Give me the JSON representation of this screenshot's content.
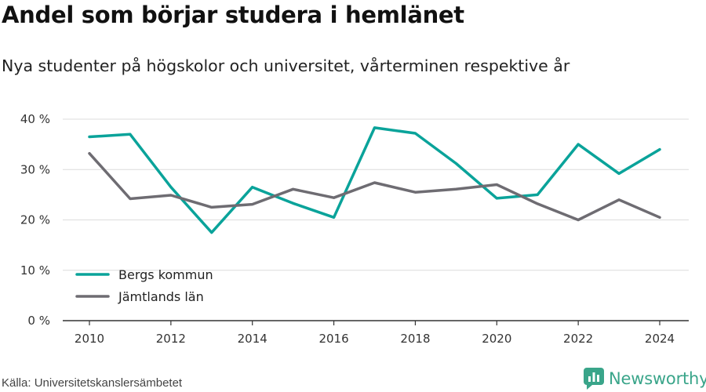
{
  "title": "Andel som börjar studera i hemlänet",
  "subtitle": "Nya studenter på högskolor och universitet, vårterminen respektive år",
  "source": "Källa: Universitetskanslersämbetet",
  "brand": {
    "name": "Newsworthy",
    "icon": "newsworthy-logo-icon",
    "color": "#3aa58a"
  },
  "chart_data": {
    "type": "line",
    "title": "",
    "xlabel": "",
    "ylabel": "",
    "x": [
      2010,
      2011,
      2012,
      2013,
      2014,
      2015,
      2016,
      2017,
      2018,
      2019,
      2020,
      2021,
      2022,
      2023,
      2024
    ],
    "series": [
      {
        "name": "Bergs kommun",
        "color": "#0aa39a",
        "values": [
          36.5,
          37.0,
          26.5,
          17.5,
          26.5,
          23.3,
          20.5,
          38.3,
          37.2,
          31.2,
          24.3,
          25.0,
          35.0,
          29.2,
          34.0
        ]
      },
      {
        "name": "Jämtlands län",
        "color": "#6e6c72",
        "values": [
          33.2,
          24.2,
          24.9,
          22.5,
          23.1,
          26.1,
          24.4,
          27.4,
          25.5,
          26.1,
          27.0,
          23.2,
          20.0,
          24.0,
          20.5
        ]
      }
    ],
    "ylim": [
      0,
      40
    ],
    "yticks": [
      0,
      10,
      20,
      30,
      40
    ],
    "ytick_labels": [
      "0 %",
      "10 %",
      "20 %",
      "30 %",
      "40 %"
    ],
    "xticks": [
      2010,
      2012,
      2014,
      2016,
      2018,
      2020,
      2022,
      2024
    ],
    "xtick_labels": [
      "2010",
      "2012",
      "2014",
      "2016",
      "2018",
      "2020",
      "2022",
      "2024"
    ],
    "grid": true,
    "legend_position": "bottom-left"
  }
}
